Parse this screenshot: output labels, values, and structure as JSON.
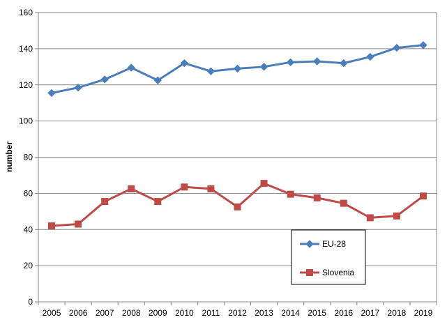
{
  "chart_data": {
    "type": "line",
    "title": "",
    "xlabel": "",
    "ylabel": "number",
    "ylim": [
      0,
      160
    ],
    "yticks": [
      0,
      20,
      40,
      60,
      80,
      100,
      120,
      140,
      160
    ],
    "grid": "horizontal",
    "legend_position": "bottom-right",
    "categories": [
      "2005",
      "2006",
      "2007",
      "2008",
      "2009",
      "2010",
      "2011",
      "2012",
      "2013",
      "2014",
      "2015",
      "2016",
      "2017",
      "2018",
      "2019"
    ],
    "series": [
      {
        "name": "EU-28",
        "color": "#4a7ebb",
        "marker": "diamond",
        "values": [
          115.5,
          118.5,
          123,
          129.5,
          122.5,
          132,
          127.5,
          129,
          130,
          132.5,
          133,
          132,
          135.5,
          140.5,
          142
        ]
      },
      {
        "name": "Slovenia",
        "color": "#be4b48",
        "marker": "square",
        "values": [
          42,
          43,
          55.5,
          62.5,
          55.5,
          63.5,
          62.5,
          52.5,
          65.5,
          59.5,
          57.5,
          54.5,
          46.5,
          47.5,
          58.5
        ]
      }
    ]
  }
}
